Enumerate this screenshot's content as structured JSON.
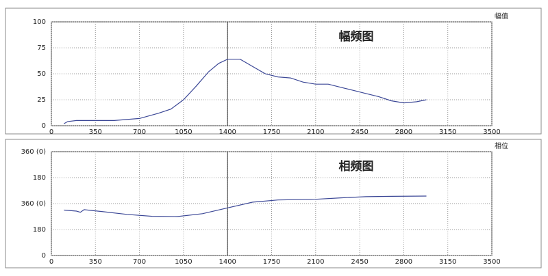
{
  "chart_data": [
    {
      "type": "line",
      "title": "幅频图",
      "y_label": "幅值",
      "color": "#3b4796",
      "grid": true,
      "cursor": 1400,
      "x": [
        100,
        130,
        200,
        500,
        700,
        850,
        950,
        1050,
        1150,
        1250,
        1330,
        1400,
        1500,
        1600,
        1700,
        1800,
        1900,
        2000,
        2100,
        2200,
        2300,
        2400,
        2500,
        2600,
        2700,
        2800,
        2900,
        2980
      ],
      "values": [
        2,
        4,
        5,
        5,
        7,
        12,
        16,
        25,
        38,
        52,
        60,
        64,
        64,
        57,
        50,
        47,
        46,
        42,
        40,
        40,
        37,
        34,
        31,
        28,
        24,
        22,
        23,
        25
      ],
      "xlim": [
        0,
        3500
      ],
      "xticks": [
        0,
        350,
        700,
        1050,
        1400,
        1750,
        2100,
        2450,
        2800,
        3150,
        3500
      ],
      "ylim": [
        0,
        100
      ],
      "yticks": [
        0,
        25,
        50,
        75,
        100
      ]
    },
    {
      "type": "line",
      "title": "相频图",
      "y_label": "相位",
      "color": "#3b4796",
      "grid": true,
      "cursor": 1400,
      "x": [
        100,
        200,
        230,
        260,
        400,
        600,
        800,
        1000,
        1200,
        1400,
        1600,
        1800,
        2100,
        2300,
        2500,
        2700,
        2980
      ],
      "values": [
        315,
        308,
        300,
        318,
        305,
        285,
        272,
        270,
        290,
        330,
        370,
        385,
        390,
        400,
        408,
        410,
        412
      ],
      "xlim": [
        0,
        3500
      ],
      "xticks": [
        0,
        350,
        700,
        1050,
        1400,
        1750,
        2100,
        2450,
        2800,
        3150,
        3500
      ],
      "ylim": [
        0,
        720
      ],
      "yticks": [
        0,
        180,
        {
          "value": 360,
          "label": "360 (0)"
        },
        {
          "value": 540,
          "label": "180"
        },
        {
          "value": 720,
          "label": "360 (0)"
        }
      ]
    }
  ]
}
